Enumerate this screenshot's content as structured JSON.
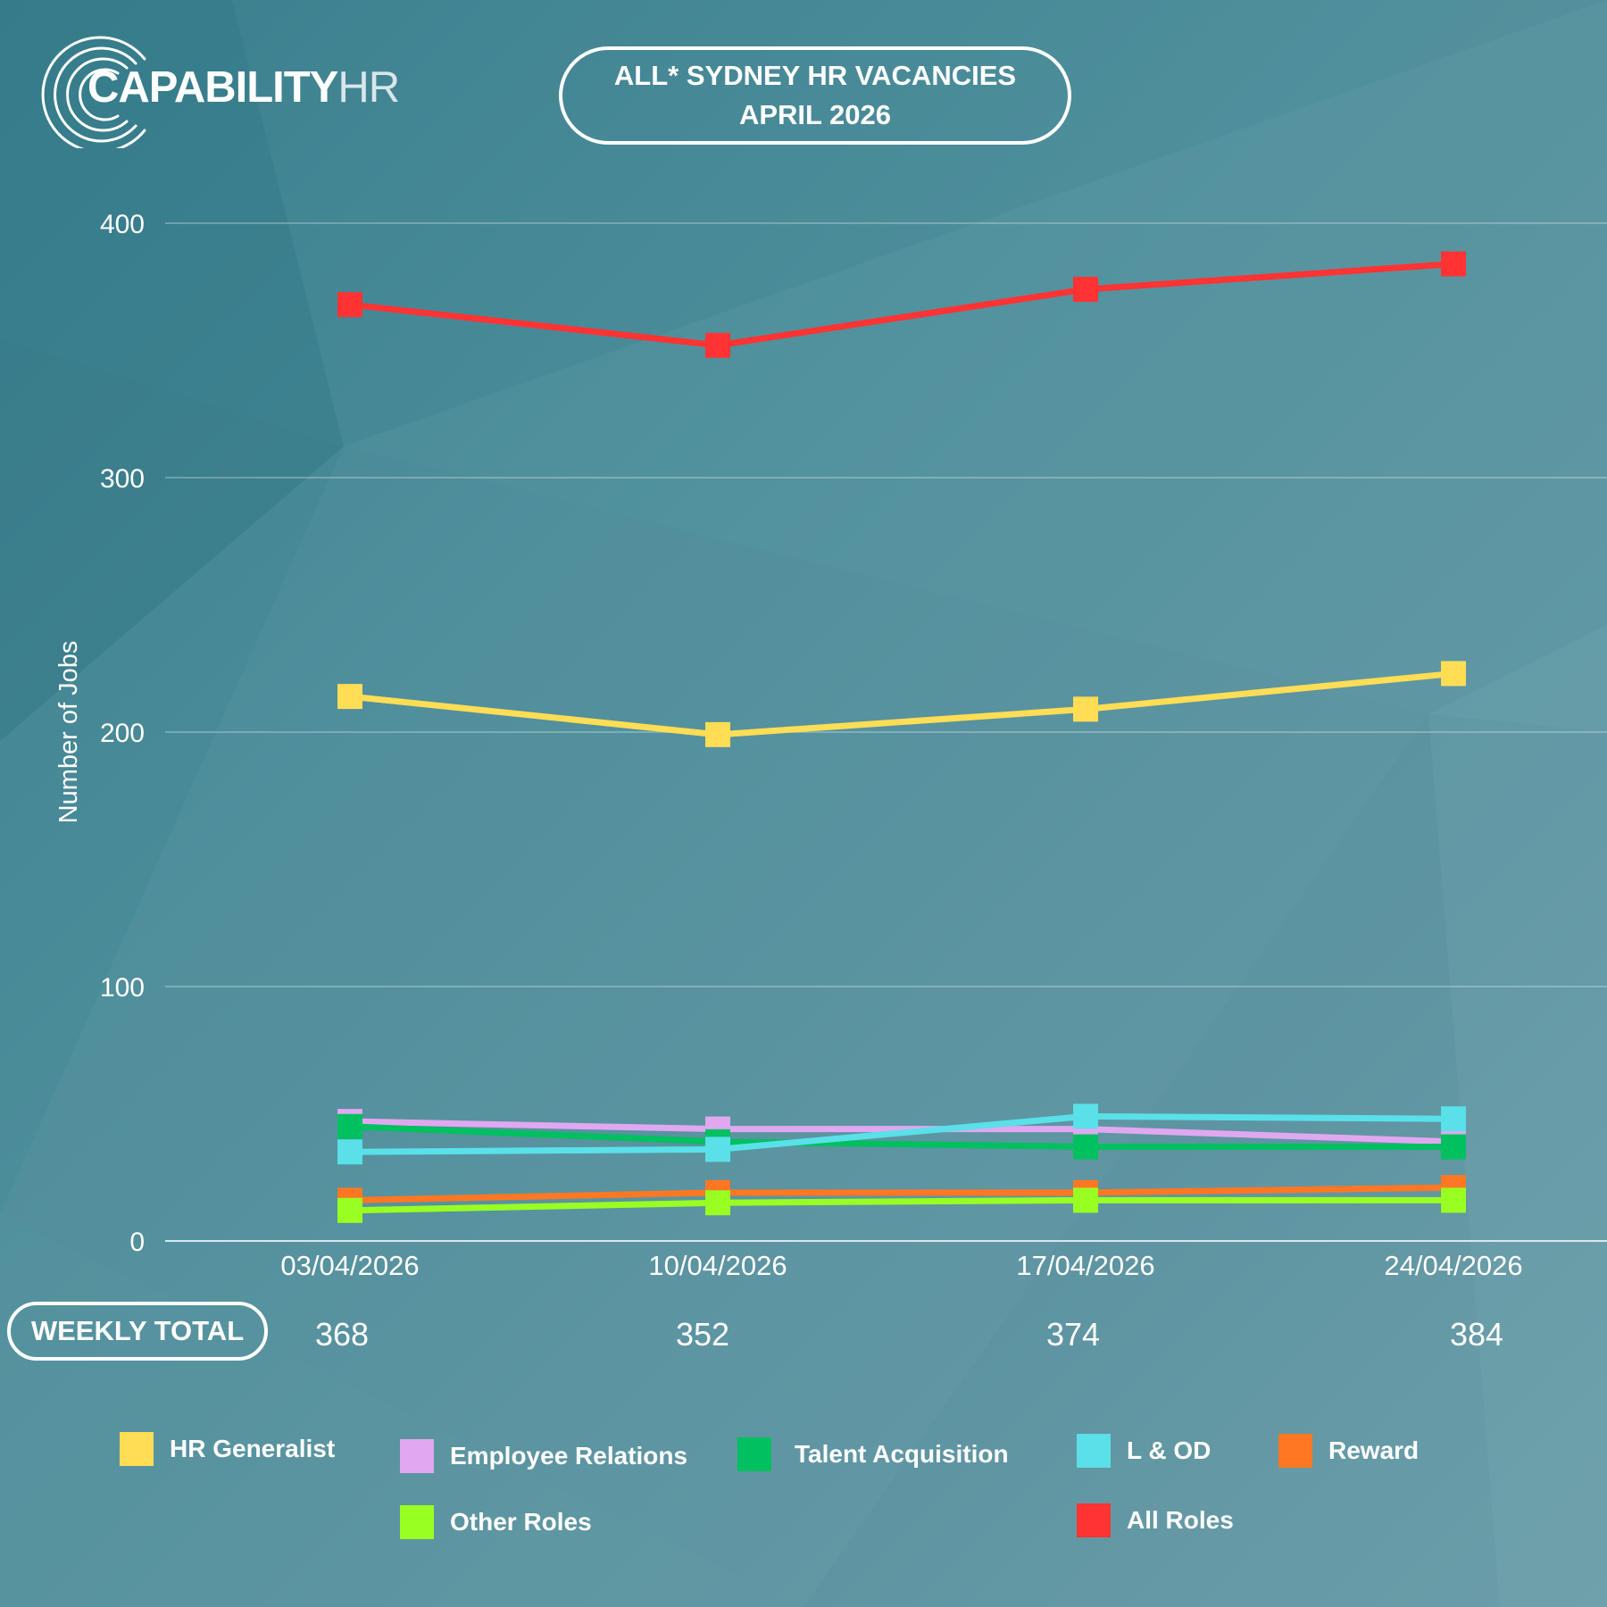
{
  "logo": {
    "main": "CAPABILITY",
    "suffix": "HR"
  },
  "header": {
    "title_line1": "ALL* SYDNEY HR VACANCIES",
    "title_line2": "APRIL 2026"
  },
  "weekly_total": {
    "label": "WEEKLY TOTAL",
    "values": [
      "368",
      "352",
      "374",
      "384"
    ]
  },
  "legend": [
    {
      "label": "HR Generalist",
      "color": "#ffdd55"
    },
    {
      "label": "Employee Relations",
      "color": "#e0a8f0"
    },
    {
      "label": "Talent Acquisition",
      "color": "#00c060"
    },
    {
      "label": "L & OD",
      "color": "#5ae0e8"
    },
    {
      "label": "Reward",
      "color": "#ff7722"
    },
    {
      "label": "Other Roles",
      "color": "#99ff22"
    },
    {
      "label": "All Roles",
      "color": "#ff3333"
    }
  ],
  "chart_data": {
    "type": "line",
    "x": [
      "03/04/2026",
      "10/04/2026",
      "17/04/2026",
      "24/04/2026"
    ],
    "ylabel": "Number of Jobs",
    "xlabel": "",
    "ylim": [
      0,
      400
    ],
    "yticks": [
      "0",
      "100",
      "200",
      "300",
      "400"
    ],
    "grid": true,
    "legend_position": "bottom",
    "marker": "square",
    "series": [
      {
        "name": "HR Generalist",
        "color": "#ffdd55",
        "values": [
          214,
          199,
          209,
          223
        ]
      },
      {
        "name": "Employee Relations",
        "color": "#e0a8f0",
        "values": [
          47,
          44,
          44,
          39
        ]
      },
      {
        "name": "Talent Acquisition",
        "color": "#00c060",
        "values": [
          45,
          39,
          37,
          37
        ]
      },
      {
        "name": "L & OD",
        "color": "#5ae0e8",
        "values": [
          35,
          36,
          49,
          48
        ]
      },
      {
        "name": "Reward",
        "color": "#ff7722",
        "values": [
          16,
          19,
          19,
          21
        ]
      },
      {
        "name": "Other Roles",
        "color": "#99ff22",
        "values": [
          12,
          15,
          16,
          16
        ]
      },
      {
        "name": "All Roles",
        "color": "#ff3333",
        "values": [
          368,
          352,
          374,
          384
        ]
      }
    ]
  }
}
